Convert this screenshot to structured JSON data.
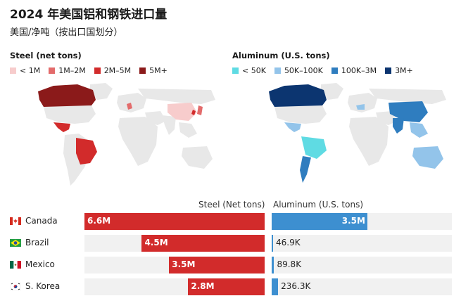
{
  "title": "2024 年美国铝和钢铁进口量",
  "subtitle": "美国/净吨（按出口国划分）",
  "steel_legend": {
    "title": "Steel (net tons)",
    "items": [
      {
        "label": "< 1M",
        "color": "#f7cccc"
      },
      {
        "label": "1M–2M",
        "color": "#e36b6b"
      },
      {
        "label": "2M–5M",
        "color": "#d22b2b"
      },
      {
        "label": "5M+",
        "color": "#8b1a1a"
      }
    ]
  },
  "aluminum_legend": {
    "title": "Aluminum (U.S. tons)",
    "items": [
      {
        "label": "< 50K",
        "color": "#5fdbe3"
      },
      {
        "label": "50K–100K",
        "color": "#93c4ea"
      },
      {
        "label": "100K–3M",
        "color": "#2f7dbf"
      },
      {
        "label": "3M+",
        "color": "#0c3570"
      }
    ]
  },
  "headers": {
    "steel": "Steel (Net tons)",
    "aluminum": "Aluminum (U.S. tons)"
  },
  "chart_data": {
    "type": "bar",
    "categories": [
      "Canada",
      "Brazil",
      "Mexico",
      "S. Korea"
    ],
    "series": [
      {
        "name": "Steel (Net tons)",
        "values": [
          6600000,
          4500000,
          3500000,
          2800000
        ],
        "labels": [
          "6.6M",
          "4.5M",
          "3.5M",
          "2.8M"
        ],
        "color": "#d22b2b"
      },
      {
        "name": "Aluminum (U.S. tons)",
        "values": [
          3500000,
          46900,
          89800,
          236300
        ],
        "labels": [
          "3.5M",
          "46.9K",
          "89.8K",
          "236.3K"
        ],
        "color": "#3d8fd0"
      }
    ]
  },
  "map_colors": {
    "land": "#e8e8e8",
    "canada_steel": "#8b1a1a",
    "mexico_steel": "#d22b2b",
    "brazil_steel": "#d22b2b",
    "light_steel": "#f7cccc",
    "canada_alu": "#0c3570"
  }
}
